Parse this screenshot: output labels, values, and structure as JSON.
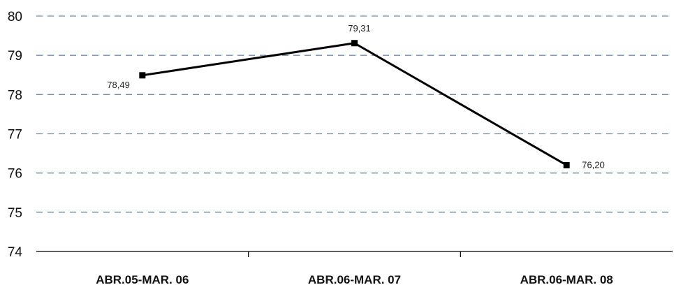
{
  "chart_data": {
    "type": "line",
    "title": "",
    "xlabel": "",
    "ylabel": "",
    "categories": [
      "ABR.05-MAR. 06",
      "ABR.06-MAR. 07",
      "ABR.06-MAR. 08"
    ],
    "series": [
      {
        "values": [
          78.49,
          79.31,
          76.2
        ],
        "labels": [
          "78,49",
          "79,31",
          "76,20"
        ],
        "color": "#000000",
        "marker": "square"
      }
    ],
    "ylim": [
      74,
      80
    ],
    "yticks": [
      "74",
      "75",
      "76",
      "77",
      "78",
      "79",
      "80"
    ],
    "grid": true,
    "grid_color": "#6a8fb0",
    "grid_style": "dashed",
    "legend": "none"
  }
}
